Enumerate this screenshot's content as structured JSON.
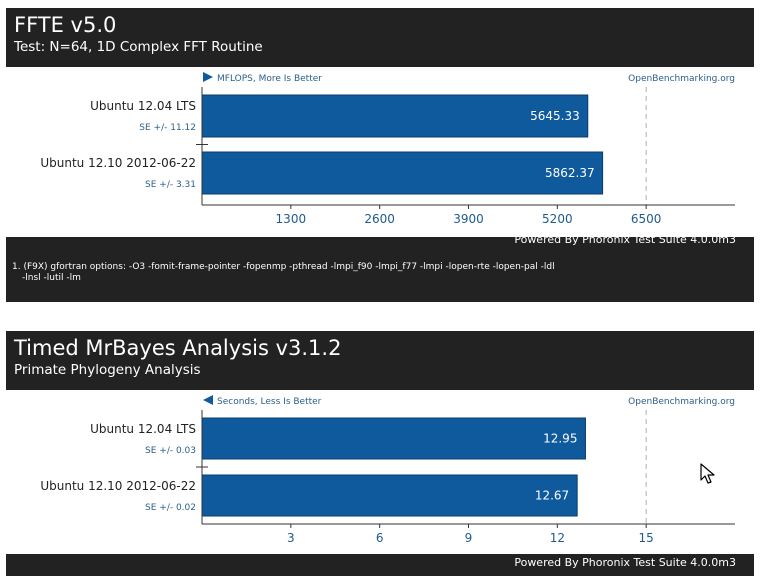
{
  "charts": [
    {
      "title": "FFTE v5.0",
      "subtitle": "Test: N=64, 1D Complex FFT Routine",
      "source": "OpenBenchmarking.org",
      "powered_by": "Powered By Phoronix Test Suite 4.0.0m3",
      "notes": [
        "1. (F9X) gfortran options: -O3 -fomit-frame-pointer -fopenmp -pthread -lmpi_f90 -lmpi_f77 -lmpi -lopen-rte -lopen-pal -ldl",
        "-lnsl -lutil -lm"
      ]
    },
    {
      "title": "Timed MrBayes Analysis v3.1.2",
      "subtitle": "Primate Phylogeny Analysis",
      "source": "OpenBenchmarking.org",
      "powered_by": "Powered By Phoronix Test Suite 4.0.0m3"
    }
  ],
  "chart_data": [
    {
      "type": "bar",
      "orientation": "horizontal",
      "axis_label": "MFLOPS, More Is Better",
      "direction": "more-is-better",
      "categories": [
        "Ubuntu 12.04 LTS",
        "Ubuntu 12.10 2012-06-22"
      ],
      "values": [
        5645.33,
        5862.37
      ],
      "value_labels": [
        "5645.33",
        "5862.37"
      ],
      "errors": [
        "SE +/- 11.12",
        "SE +/- 3.31"
      ],
      "ticks": [
        1300,
        2600,
        3900,
        5200,
        6500
      ],
      "tick_labels": [
        "1300",
        "2600",
        "3900",
        "5200",
        "6500"
      ],
      "xlim": [
        0,
        7800
      ]
    },
    {
      "type": "bar",
      "orientation": "horizontal",
      "axis_label": "Seconds, Less Is Better",
      "direction": "less-is-better",
      "categories": [
        "Ubuntu 12.04 LTS",
        "Ubuntu 12.10 2012-06-22"
      ],
      "values": [
        12.95,
        12.67
      ],
      "value_labels": [
        "12.95",
        "12.67"
      ],
      "errors": [
        "SE +/- 0.03",
        "SE +/- 0.02"
      ],
      "ticks": [
        3,
        6,
        9,
        12,
        15
      ],
      "tick_labels": [
        "3",
        "6",
        "9",
        "12",
        "15"
      ],
      "xlim": [
        0,
        18
      ]
    }
  ],
  "colors": {
    "header_bg": "#222222",
    "bar_fill": "#0e5a9c",
    "bar_stroke": "#0b3d6b",
    "link_text": "#2a5f8a",
    "tick_text": "#1f5a8f"
  },
  "cursor_icon": "mouse-pointer-icon"
}
